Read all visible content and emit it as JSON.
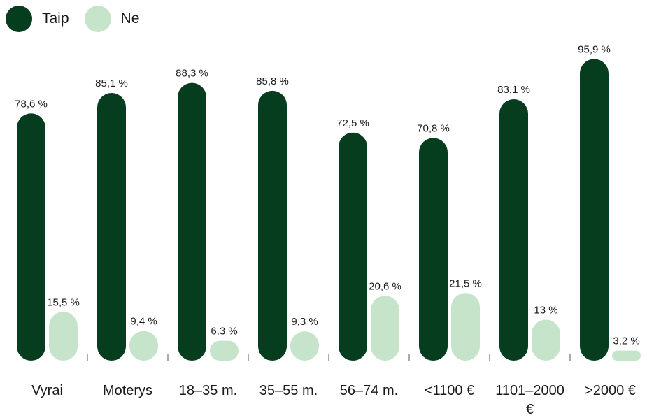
{
  "chart_data": {
    "type": "bar",
    "legend_position": "top-left",
    "grid": false,
    "ylim": [
      0,
      100
    ],
    "categories": [
      "Vyrai",
      "Moterys",
      "18–35 m.",
      "35–55 m.",
      "56–74 m.",
      "<1100 €",
      "1101–2000 €",
      ">2000 €"
    ],
    "series": [
      {
        "name": "Taip",
        "color": "#063d1f",
        "values": [
          78.6,
          85.1,
          88.3,
          85.8,
          72.5,
          70.8,
          83.1,
          95.9
        ],
        "labels": [
          "78,6 %",
          "85,1 %",
          "88,3 %",
          "85,8 %",
          "72,5 %",
          "70,8 %",
          "83,1 %",
          "95,9 %"
        ]
      },
      {
        "name": "Ne",
        "color": "#c6e4c9",
        "values": [
          15.5,
          9.4,
          6.3,
          9.3,
          20.6,
          21.5,
          13,
          3.2
        ],
        "labels": [
          "15,5 %",
          "9,4 %",
          "6,3 %",
          "9,3 %",
          "20,6 %",
          "21,5 %",
          "13 %",
          "3,2 %"
        ]
      }
    ]
  }
}
